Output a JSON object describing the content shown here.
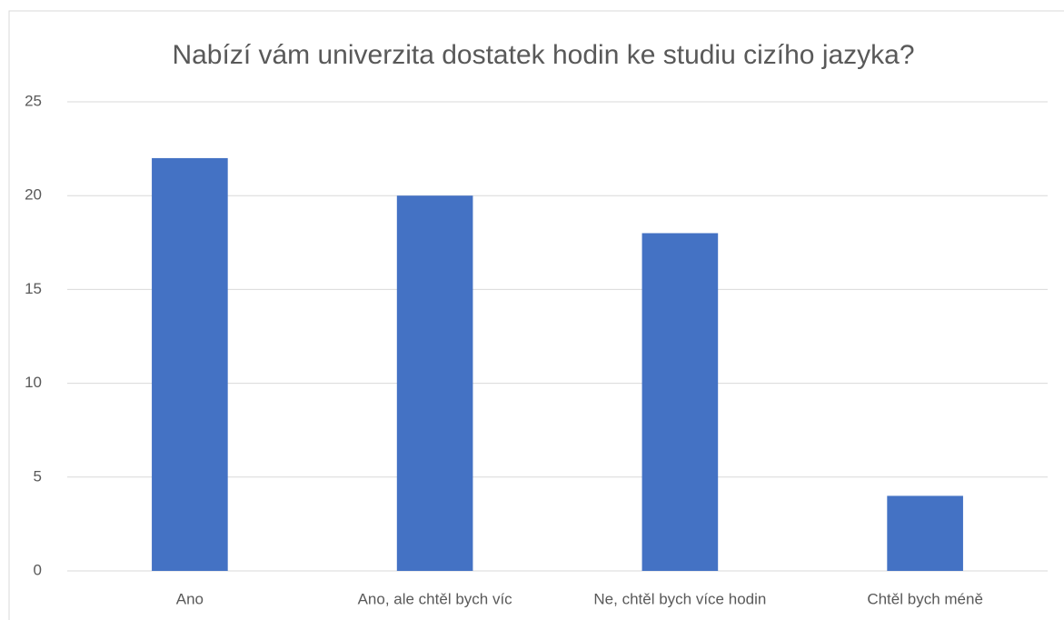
{
  "chart_data": {
    "type": "bar",
    "title": "Nabízí vám univerzita dostatek hodin ke studiu cizího jazyka?",
    "categories": [
      "Ano",
      "Ano, ale chtěl bych víc",
      "Ne, chtěl bych více hodin",
      "Chtěl bych méně"
    ],
    "values": [
      22,
      20,
      18,
      4
    ],
    "color": "#4472c4",
    "ylim": [
      0,
      25
    ],
    "yticks": [
      0,
      5,
      10,
      15,
      20,
      25
    ],
    "grid": true
  }
}
